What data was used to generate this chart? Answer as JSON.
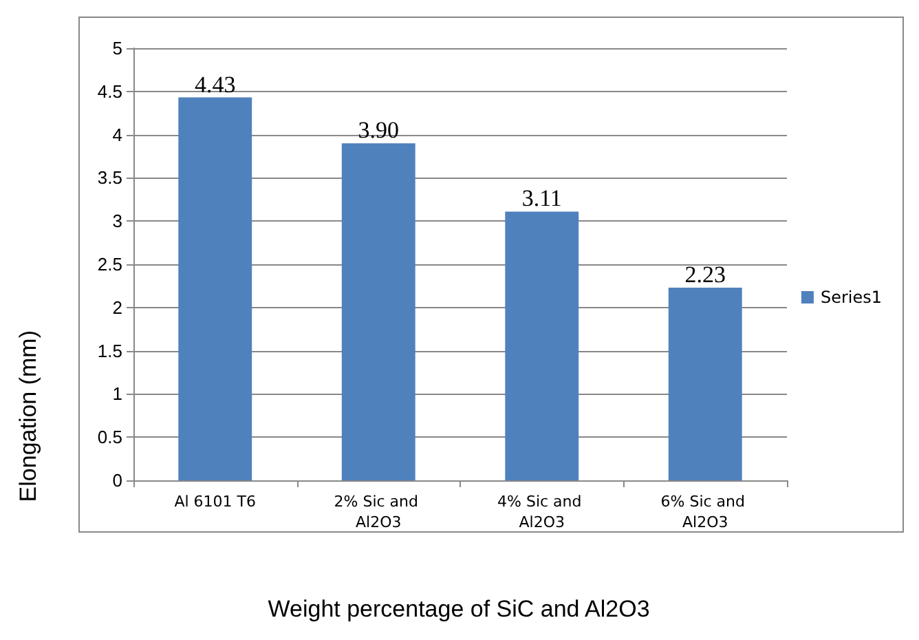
{
  "chart_data": {
    "type": "bar",
    "xlabel": "Weight percentage of SiC and Al2O3",
    "ylabel": "Elongation (mm)",
    "categories": [
      "Al 6101 T6",
      "2% Sic and Al2O3",
      "4% Sic and Al2O3",
      "6% Sic and Al2O3"
    ],
    "series": [
      {
        "name": "Series1",
        "color": "#4f81bd",
        "values": [
          4.43,
          3.9,
          3.11,
          2.23
        ],
        "value_labels": [
          "4.43",
          "3.90",
          "3.11",
          "2.23"
        ]
      }
    ],
    "ylim": [
      0,
      5
    ],
    "yticks": [
      0,
      0.5,
      1,
      1.5,
      2,
      2.5,
      3,
      3.5,
      4,
      4.5,
      5
    ],
    "grid": "y",
    "legend": "right"
  }
}
